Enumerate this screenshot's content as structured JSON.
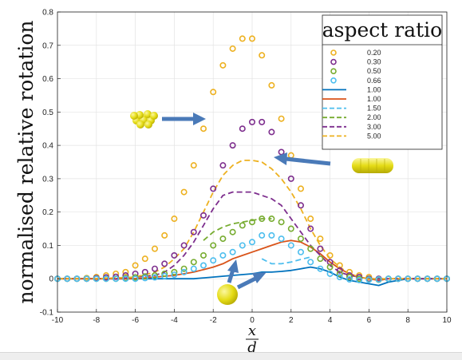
{
  "chart_data": {
    "type": "line",
    "title": "",
    "xlabel": {
      "numerator": "x",
      "denominator": "d"
    },
    "ylabel": "normalised relative rotation",
    "xlim": [
      -10,
      10
    ],
    "ylim": [
      -0.1,
      0.8
    ],
    "xticks": [
      "-10",
      "-8",
      "-6",
      "-4",
      "-2",
      "0",
      "2",
      "4",
      "6",
      "8",
      "10"
    ],
    "yticks": [
      "-0.1",
      "0",
      "0.1",
      "0.2",
      "0.3",
      "0.4",
      "0.5",
      "0.6",
      "0.7",
      "0.8"
    ],
    "grid": true,
    "legend": {
      "title": "aspect ratio",
      "placement": "top-right"
    },
    "series": [
      {
        "name": "0.20",
        "style": "circles",
        "color": "#EDB120",
        "x": [
          -10,
          -9.5,
          -9,
          -8.5,
          -8,
          -7.5,
          -7,
          -6.5,
          -6,
          -5.5,
          -5,
          -4.5,
          -4,
          -3.5,
          -3,
          -2.5,
          -2,
          -1.5,
          -1,
          -0.5,
          0,
          0.5,
          1,
          1.5,
          2,
          2.5,
          3,
          3.5,
          4,
          4.5,
          5,
          5.5,
          6,
          6.5,
          7,
          7.5,
          8,
          8.5,
          9,
          9.5,
          10
        ],
        "y": [
          0,
          0,
          0,
          0.002,
          0.005,
          0.01,
          0.015,
          0.02,
          0.04,
          0.06,
          0.09,
          0.13,
          0.18,
          0.26,
          0.34,
          0.45,
          0.56,
          0.64,
          0.69,
          0.72,
          0.72,
          0.67,
          0.58,
          0.48,
          0.37,
          0.27,
          0.18,
          0.12,
          0.07,
          0.04,
          0.02,
          0.01,
          0.005,
          0,
          0,
          0,
          0,
          0,
          0,
          0,
          0
        ]
      },
      {
        "name": "0.30",
        "style": "circles",
        "color": "#7E2F8E",
        "x": [
          -10,
          -9.5,
          -9,
          -8.5,
          -8,
          -7.5,
          -7,
          -6.5,
          -6,
          -5.5,
          -5,
          -4.5,
          -4,
          -3.5,
          -3,
          -2.5,
          -2,
          -1.5,
          -1,
          -0.5,
          0,
          0.5,
          1,
          1.5,
          2,
          2.5,
          3,
          3.5,
          4,
          4.5,
          5,
          5.5,
          6,
          6.5,
          7,
          7.5,
          8,
          8.5,
          9,
          9.5,
          10
        ],
        "y": [
          0,
          0,
          0,
          0,
          0.002,
          0.004,
          0.006,
          0.01,
          0.015,
          0.02,
          0.03,
          0.045,
          0.07,
          0.1,
          0.14,
          0.19,
          0.27,
          0.34,
          0.4,
          0.45,
          0.47,
          0.47,
          0.44,
          0.38,
          0.3,
          0.22,
          0.15,
          0.09,
          0.05,
          0.025,
          0.01,
          0.005,
          0,
          0,
          0,
          0,
          0,
          0,
          0,
          0,
          0
        ]
      },
      {
        "name": "0.50",
        "style": "circles",
        "color": "#77AC30",
        "x": [
          -10,
          -9.5,
          -9,
          -8.5,
          -8,
          -7.5,
          -7,
          -6.5,
          -6,
          -5.5,
          -5,
          -4.5,
          -4,
          -3.5,
          -3,
          -2.5,
          -2,
          -1.5,
          -1,
          -0.5,
          0,
          0.5,
          1,
          1.5,
          2,
          2.5,
          3,
          3.5,
          4,
          4.5,
          5,
          5.5,
          6,
          6.5,
          7,
          7.5,
          8,
          8.5,
          9,
          9.5,
          10
        ],
        "y": [
          0,
          0,
          0,
          0,
          0,
          0,
          0,
          0.002,
          0.004,
          0.007,
          0.01,
          0.015,
          0.02,
          0.03,
          0.05,
          0.07,
          0.1,
          0.12,
          0.14,
          0.16,
          0.17,
          0.18,
          0.18,
          0.17,
          0.15,
          0.12,
          0.09,
          0.06,
          0.035,
          0.015,
          0.005,
          0,
          -0.002,
          -0.003,
          0,
          0,
          0,
          0,
          0,
          0,
          0
        ]
      },
      {
        "name": "0.66",
        "style": "circles",
        "color": "#4DBEEE",
        "x": [
          -10,
          -9.5,
          -9,
          -8.5,
          -8,
          -7.5,
          -7,
          -6.5,
          -6,
          -5.5,
          -5,
          -4.5,
          -4,
          -3.5,
          -3,
          -2.5,
          -2,
          -1.5,
          -1,
          -0.5,
          0,
          0.5,
          1,
          1.5,
          2,
          2.5,
          3,
          3.5,
          4,
          4.5,
          5,
          5.5,
          6,
          6.5,
          7,
          7.5,
          8,
          8.5,
          9,
          9.5,
          10
        ],
        "y": [
          0,
          0,
          0,
          0,
          0,
          0,
          0,
          0,
          0,
          0.002,
          0.004,
          0.008,
          0.012,
          0.02,
          0.03,
          0.04,
          0.055,
          0.07,
          0.08,
          0.1,
          0.11,
          0.13,
          0.13,
          0.12,
          0.1,
          0.08,
          0.05,
          0.03,
          0.015,
          0.005,
          -0.002,
          -0.004,
          -0.003,
          -0.002,
          0,
          0,
          0,
          0,
          0,
          0,
          0
        ]
      },
      {
        "name": "1.00",
        "style": "solid",
        "color": "#0072BD",
        "x": [
          -10,
          -9,
          -8,
          -7,
          -6,
          -5,
          -4,
          -3,
          -2,
          -1,
          0,
          0.5,
          1,
          1.5,
          2,
          2.5,
          3,
          3.5,
          4,
          4.5,
          5,
          5.5,
          6,
          6.5,
          7,
          8,
          9,
          10
        ],
        "y": [
          0,
          0,
          0,
          0,
          0,
          0,
          0,
          0,
          0.005,
          0.01,
          0.015,
          0.02,
          0.02,
          0.022,
          0.025,
          0.03,
          0.035,
          0.03,
          0.02,
          0.005,
          -0.005,
          -0.01,
          -0.015,
          -0.02,
          -0.01,
          0,
          0,
          0
        ]
      },
      {
        "name": "1.00",
        "style": "solid",
        "color": "#D95319",
        "x": [
          -10,
          -9,
          -8,
          -7,
          -6,
          -5,
          -4,
          -3,
          -2,
          -1.5,
          -1,
          -0.5,
          0,
          0.5,
          1,
          1.5,
          2,
          2.5,
          3,
          3.5,
          4,
          4.5,
          5,
          5.5,
          6,
          6.5,
          7,
          8,
          9,
          10
        ],
        "y": [
          0,
          0,
          0,
          0,
          0,
          0.005,
          0.01,
          0.02,
          0.035,
          0.045,
          0.06,
          0.07,
          0.08,
          0.09,
          0.1,
          0.11,
          0.115,
          0.11,
          0.095,
          0.075,
          0.05,
          0.03,
          0.015,
          0.005,
          0,
          -0.005,
          0,
          0,
          0,
          0
        ]
      },
      {
        "name": "1.50",
        "style": "dashed",
        "color": "#4DBEEE",
        "x": [
          0.5,
          1,
          1.5,
          2,
          2.5,
          3
        ],
        "y": [
          0.06,
          0.045,
          0.045,
          0.05,
          0.058,
          0.065
        ]
      },
      {
        "name": "2.00",
        "style": "dashed",
        "color": "#77AC30",
        "x": [
          -2.5,
          -2,
          -1.5,
          -1,
          -0.5,
          0,
          0.5,
          1
        ],
        "y": [
          0.115,
          0.14,
          0.155,
          0.165,
          0.17,
          0.175,
          0.18,
          0.18
        ]
      },
      {
        "name": "3.00",
        "style": "dashed",
        "color": "#7E2F8E",
        "x": [
          -10,
          -8,
          -6,
          -5,
          -4.5,
          -4,
          -3.5,
          -3,
          -2.5,
          -2,
          -1.5,
          -1,
          -0.5,
          0,
          0.5,
          1,
          1.5,
          2,
          2.5,
          3,
          3.5,
          4,
          4.5,
          5,
          5.5,
          6,
          7,
          8,
          10
        ],
        "y": [
          0,
          0,
          0.005,
          0.01,
          0.02,
          0.04,
          0.07,
          0.11,
          0.16,
          0.21,
          0.25,
          0.26,
          0.26,
          0.26,
          0.25,
          0.24,
          0.22,
          0.18,
          0.14,
          0.1,
          0.07,
          0.04,
          0.02,
          0.01,
          0.005,
          0,
          0,
          0,
          0
        ]
      },
      {
        "name": "5.00",
        "style": "dashed",
        "color": "#EDB120",
        "x": [
          -10,
          -8,
          -6,
          -5,
          -4.5,
          -4,
          -3.5,
          -3,
          -2.5,
          -2,
          -1.5,
          -1,
          -0.5,
          0,
          0.5,
          1,
          1.5,
          2,
          2.5,
          3,
          3.5,
          4,
          4.5,
          5,
          5.5,
          6,
          7,
          8,
          10
        ],
        "y": [
          0,
          0,
          0.005,
          0.02,
          0.035,
          0.06,
          0.09,
          0.14,
          0.2,
          0.26,
          0.31,
          0.34,
          0.355,
          0.355,
          0.35,
          0.33,
          0.3,
          0.26,
          0.21,
          0.15,
          0.1,
          0.06,
          0.035,
          0.015,
          0.005,
          0,
          0,
          0,
          0
        ]
      }
    ],
    "annotations": [
      {
        "name": "cluster-particle-icon",
        "color": "#EDE01E"
      },
      {
        "name": "rod-particle-icon",
        "color": "#EDE01E"
      },
      {
        "name": "sphere-particle-icon",
        "color": "#EDE01E"
      }
    ]
  }
}
